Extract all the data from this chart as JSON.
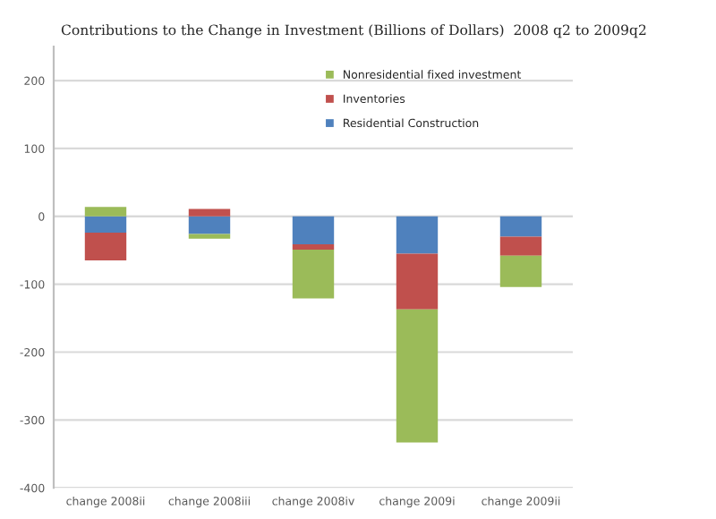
{
  "chart_data": {
    "type": "bar",
    "title": "Contributions to the Change in Investment (Billions of Dollars)  2008 q2 to 2009q2",
    "categories": [
      "change 2008ii",
      "change 2008iii",
      "change 2008iv",
      "change 2009i",
      "change 2009ii"
    ],
    "series": [
      {
        "name": "Residential Construction",
        "color": "#4f81bd",
        "values": [
          -24,
          -26,
          -41,
          -55,
          -30
        ]
      },
      {
        "name": "Inventories",
        "color": "#c0504d",
        "values": [
          -41,
          11,
          -8,
          -82,
          -28
        ]
      },
      {
        "name": "Nonresidential fixed investment",
        "color": "#9bbb59",
        "values": [
          14,
          -7,
          -72,
          -196,
          -46
        ]
      }
    ],
    "stacked": true,
    "ylim": [
      -400,
      250
    ],
    "yticks": [
      -400,
      -300,
      -200,
      -100,
      0,
      100,
      200
    ],
    "grid": "y",
    "legend": "top right"
  }
}
